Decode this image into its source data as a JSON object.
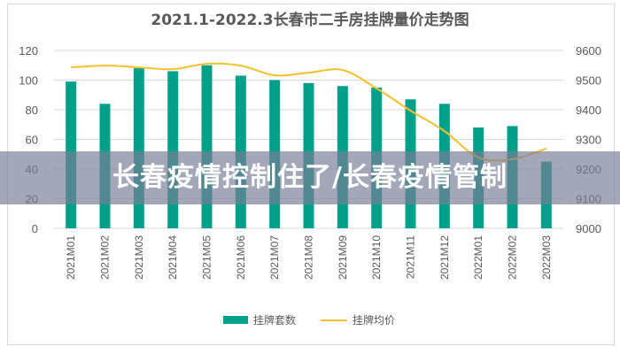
{
  "banner": {
    "text": "长春疫情控制住了/长春疫情管制"
  },
  "colors": {
    "bar": "#00a08a",
    "line": "#f5c02a",
    "grid": "#d9d9d9",
    "overlay": "#787e96"
  },
  "chart_data": {
    "type": "bar+line",
    "title": "2021.1-2022.3长春市二手房挂牌量价走势图",
    "categories": [
      "2021M01",
      "2021M02",
      "2021M03",
      "2021M04",
      "2021M05",
      "2021M06",
      "2021M07",
      "2021M08",
      "2021M09",
      "2021M10",
      "2021M11",
      "2021M12",
      "2022M01",
      "2022M02",
      "2022M03"
    ],
    "series": [
      {
        "name": "挂牌套数",
        "type": "bar",
        "axis": "left",
        "values": [
          99,
          84,
          108,
          106,
          110,
          103,
          100,
          98,
          96,
          95,
          87,
          84,
          68,
          69,
          45
        ]
      },
      {
        "name": "挂牌均价",
        "type": "line",
        "axis": "right",
        "values": [
          9543,
          9549,
          9543,
          9537,
          9555,
          9549,
          9516,
          9525,
          9534,
          9472,
          9397,
          9328,
          9239,
          9233,
          9269
        ]
      }
    ],
    "ylim_left": [
      0,
      120
    ],
    "yticks_left": [
      "0",
      "20",
      "40",
      "60",
      "80",
      "100",
      "120"
    ],
    "ylim_right": [
      9000,
      9600
    ],
    "yticks_right": [
      "9000",
      "9100",
      "9200",
      "9300",
      "9400",
      "9500",
      "9600"
    ],
    "grid": true,
    "legend_position": "bottom"
  }
}
